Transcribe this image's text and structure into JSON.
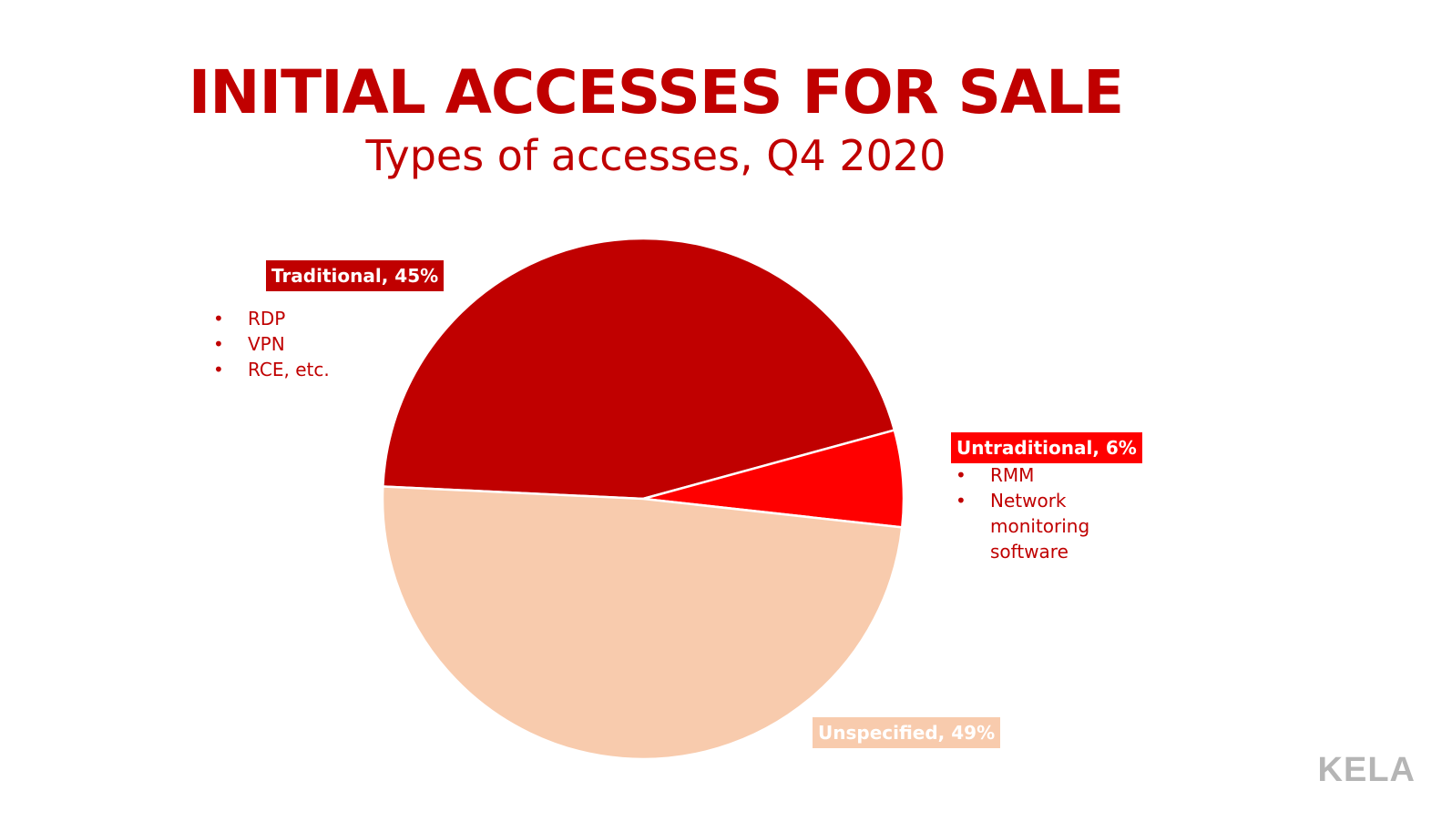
{
  "colors": {
    "title": "#c00000",
    "traditional": "#c00000",
    "untraditional": "#ff0000",
    "unspecified": "#f8cbad",
    "logo": "#b5b5b5"
  },
  "chart_data": {
    "type": "pie",
    "title": "INITIAL ACCESSES FOR SALE",
    "subtitle": "Types of accesses, Q4 2020",
    "series": [
      {
        "name": "Traditional",
        "label": "Traditional, 45%",
        "value": 45,
        "color": "#c00000",
        "details": [
          "RDP",
          "VPN",
          "RCE, etc."
        ]
      },
      {
        "name": "Untraditional",
        "label": "Untraditional, 6%",
        "value": 6,
        "color": "#ff0000",
        "details": [
          "RMM",
          "Network monitoring software"
        ]
      },
      {
        "name": "Unspecified",
        "label": "Unspecified, 49%",
        "value": 49,
        "color": "#f8cbad",
        "details": []
      }
    ]
  },
  "logo": "KELA"
}
